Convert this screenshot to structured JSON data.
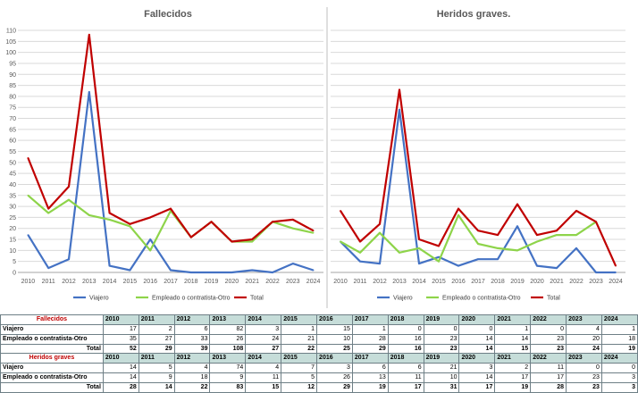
{
  "years": [
    "2010",
    "2011",
    "2012",
    "2013",
    "2014",
    "2015",
    "2016",
    "2017",
    "2018",
    "2019",
    "2020",
    "2021",
    "2022",
    "2023",
    "2024"
  ],
  "colors": {
    "viajero": "#4472c4",
    "empleado": "#8ed44a",
    "total": "#c00000",
    "grid": "#d9d9d9",
    "axis": "#a6a6a6",
    "table_header": "#c6ddd9",
    "table_title": "#c00000"
  },
  "chart_data": [
    {
      "type": "line",
      "title": "Fallecidos",
      "x": [
        "2010",
        "2011",
        "2012",
        "2013",
        "2014",
        "2015",
        "2016",
        "2017",
        "2018",
        "2019",
        "2020",
        "2021",
        "2022",
        "2023",
        "2024"
      ],
      "ylim": [
        0,
        110
      ],
      "yticks": [
        "0",
        "5",
        "10",
        "15",
        "20",
        "25",
        "30",
        "35",
        "40",
        "45",
        "50",
        "55",
        "60",
        "65",
        "70",
        "75",
        "80",
        "85",
        "90",
        "95",
        "100",
        "105",
        "110"
      ],
      "grid": true,
      "legend": "bottom",
      "series": [
        {
          "name": "Viajero",
          "color": "#4472c4",
          "values": [
            17,
            2,
            6,
            82,
            3,
            1,
            15,
            1,
            0,
            0,
            0,
            1,
            0,
            4,
            1
          ]
        },
        {
          "name": "Empleado o contratista-Otro",
          "color": "#8ed44a",
          "values": [
            35,
            27,
            33,
            26,
            24,
            21,
            10,
            28,
            16,
            23,
            14,
            14,
            23,
            20,
            18
          ]
        },
        {
          "name": "Total",
          "color": "#c00000",
          "values": [
            52,
            29,
            39,
            108,
            27,
            22,
            25,
            29,
            16,
            23,
            14,
            15,
            23,
            24,
            19
          ]
        }
      ]
    },
    {
      "type": "line",
      "title": "Heridos graves.",
      "x": [
        "2010",
        "2011",
        "2012",
        "2013",
        "2014",
        "2015",
        "2016",
        "2017",
        "2018",
        "2019",
        "2020",
        "2021",
        "2022",
        "2023",
        "2024"
      ],
      "ylim": [
        0,
        110
      ],
      "grid": true,
      "legend": "bottom",
      "series": [
        {
          "name": "Viajero",
          "color": "#4472c4",
          "values": [
            14,
            5,
            4,
            74,
            4,
            7,
            3,
            6,
            6,
            21,
            3,
            2,
            11,
            0,
            0
          ]
        },
        {
          "name": "Empleado o contratista-Otro",
          "color": "#8ed44a",
          "values": [
            14,
            9,
            18,
            9,
            11,
            5,
            26,
            13,
            11,
            10,
            14,
            17,
            17,
            23,
            null
          ]
        },
        {
          "name": "Total",
          "color": "#c00000",
          "values": [
            28,
            14,
            22,
            83,
            15,
            12,
            29,
            19,
            17,
            31,
            17,
            19,
            28,
            23,
            3
          ]
        }
      ]
    }
  ],
  "tables": {
    "fallecidos": {
      "title": "Fallecidos",
      "rows": [
        {
          "label": "Viajero",
          "values": [
            "17",
            "2",
            "6",
            "82",
            "3",
            "1",
            "15",
            "1",
            "0",
            "0",
            "0",
            "1",
            "0",
            "4",
            "1"
          ]
        },
        {
          "label": "Empleado o contratista-Otro",
          "values": [
            "35",
            "27",
            "33",
            "26",
            "24",
            "21",
            "10",
            "28",
            "16",
            "23",
            "14",
            "14",
            "23",
            "20",
            "18"
          ]
        },
        {
          "label": "Total",
          "values": [
            "52",
            "29",
            "39",
            "108",
            "27",
            "22",
            "25",
            "29",
            "16",
            "23",
            "14",
            "15",
            "23",
            "24",
            "19"
          ]
        }
      ]
    },
    "heridos": {
      "title": "Heridos graves",
      "rows": [
        {
          "label": "Viajero",
          "values": [
            "14",
            "5",
            "4",
            "74",
            "4",
            "7",
            "3",
            "6",
            "6",
            "21",
            "3",
            "2",
            "11",
            "0",
            "0"
          ]
        },
        {
          "label": "Empleado o contratista-Otro",
          "values": [
            "14",
            "9",
            "18",
            "9",
            "11",
            "5",
            "26",
            "13",
            "11",
            "10",
            "14",
            "17",
            "17",
            "23",
            "3"
          ]
        },
        {
          "label": "Total",
          "values": [
            "28",
            "14",
            "22",
            "83",
            "15",
            "12",
            "29",
            "19",
            "17",
            "31",
            "17",
            "19",
            "28",
            "23",
            "3"
          ]
        }
      ]
    }
  }
}
